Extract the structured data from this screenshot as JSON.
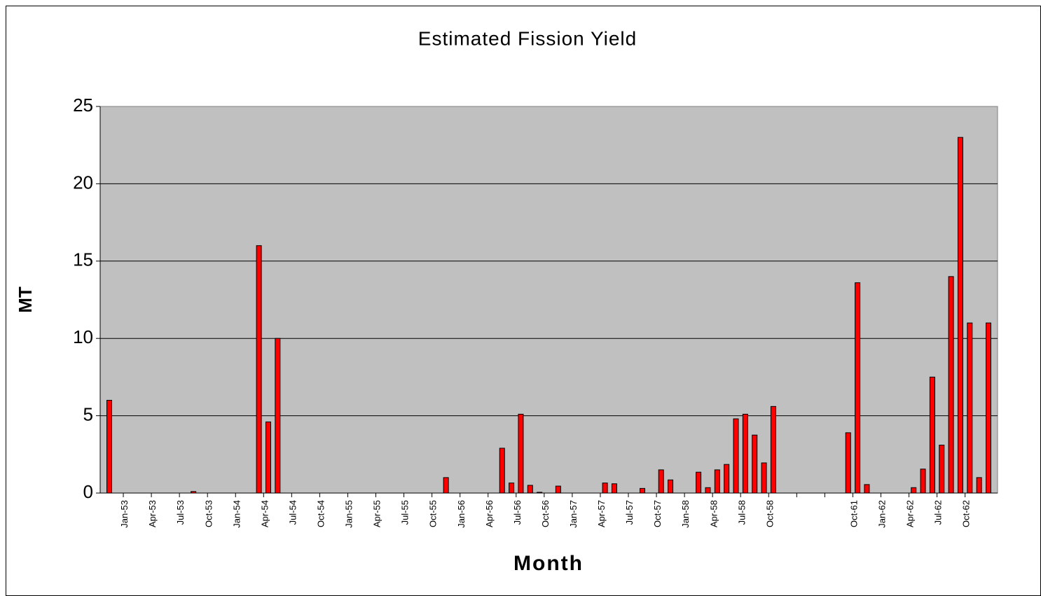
{
  "chart_data": {
    "type": "bar",
    "title": "Estimated Fission Yield",
    "x_label": "Month",
    "y_label": "MT",
    "categories": [
      null,
      null,
      "Jan-53",
      null,
      null,
      "Apr-53",
      null,
      null,
      "Jul-53",
      null,
      null,
      "Oct-53",
      null,
      null,
      "Jan-54",
      null,
      null,
      "Apr-54",
      null,
      null,
      "Jul-54",
      null,
      null,
      "Oct-54",
      null,
      null,
      "Jan-55",
      null,
      null,
      "Apr-55",
      null,
      null,
      "Jul-55",
      null,
      null,
      "Oct-55",
      null,
      null,
      "Jan-56",
      null,
      null,
      "Apr-56",
      null,
      null,
      "Jul-56",
      null,
      null,
      "Oct-56",
      null,
      null,
      "Jan-57",
      null,
      null,
      "Apr-57",
      null,
      null,
      "Jul-57",
      null,
      null,
      "Oct-57",
      null,
      null,
      "Jan-58",
      null,
      null,
      "Apr-58",
      null,
      null,
      "Jul-58",
      null,
      null,
      "Oct-58",
      null,
      null,
      null,
      null,
      null,
      null,
      null,
      null,
      "Oct-61",
      null,
      null,
      "Jan-62",
      null,
      null,
      "Apr-62",
      null,
      null,
      "Jul-62",
      null,
      null,
      "Oct-62",
      null,
      null
    ],
    "values": [
      6,
      0,
      0,
      0,
      0,
      0,
      0,
      0,
      0,
      0.1,
      0,
      0,
      0,
      0,
      0,
      0,
      16,
      4.6,
      10,
      0,
      0,
      0,
      0,
      0,
      0,
      0,
      0,
      0,
      0,
      0,
      0,
      0,
      0,
      0,
      0,
      0,
      1,
      0,
      0,
      0,
      0,
      0,
      2.9,
      0.65,
      5.1,
      0.5,
      0.05,
      0,
      0.45,
      0,
      0,
      0,
      0,
      0.65,
      0.6,
      0,
      0,
      0.3,
      0,
      1.5,
      0.85,
      0,
      0,
      1.35,
      0.35,
      1.5,
      1.85,
      4.8,
      5.1,
      3.75,
      1.95,
      5.6,
      0,
      0,
      0,
      0,
      0,
      0,
      0,
      3.9,
      13.6,
      0.55,
      0,
      0,
      0,
      0,
      0.35,
      1.55,
      7.5,
      3.1,
      14,
      23,
      11,
      1,
      11
    ],
    "color": "#ff0000",
    "ylim": [
      0,
      25
    ],
    "yticks": [
      0,
      5,
      10,
      15,
      20,
      25
    ],
    "grid": true
  }
}
